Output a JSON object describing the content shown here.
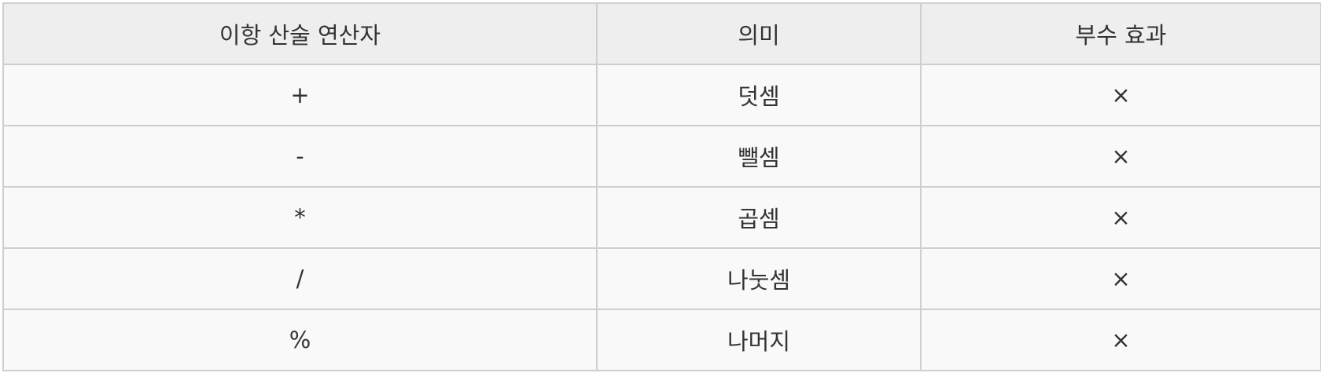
{
  "table": {
    "headers": [
      "이항 산술 연산자",
      "의미",
      "부수 효과"
    ],
    "rows": [
      {
        "operator": "+",
        "meaning": "덧셈",
        "side_effect": "×"
      },
      {
        "operator": "-",
        "meaning": "뺄셈",
        "side_effect": "×"
      },
      {
        "operator": "*",
        "meaning": "곱셈",
        "side_effect": "×"
      },
      {
        "operator": "/",
        "meaning": "나눗셈",
        "side_effect": "×"
      },
      {
        "operator": "%",
        "meaning": "나머지",
        "side_effect": "×"
      }
    ]
  }
}
